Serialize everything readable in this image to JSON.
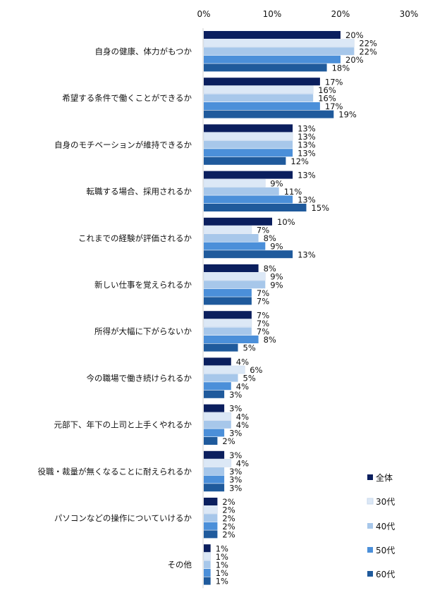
{
  "chart_data": {
    "type": "bar",
    "orientation": "horizontal",
    "xlim": [
      0,
      30
    ],
    "x_ticks": [
      "0%",
      "10%",
      "20%",
      "30%"
    ],
    "grid": false,
    "legend_position": "bottom-right",
    "categories": [
      "自身の健康、体力がもつか",
      "希望する条件で働くことができるか",
      "自身のモチベーションが維持できるか",
      "転職する場合、採用されるか",
      "これまでの経験が評価されるか",
      "新しい仕事を覚えられるか",
      "所得が大幅に下がらないか",
      "今の職場で働き続けられるか",
      "元部下、年下の上司と上手くやれるか",
      "役職・裁量が無くなることに耐えられるか",
      "パソコンなどの操作についていけるか",
      "その他"
    ],
    "series": [
      {
        "name": "全体",
        "color": "#0b1f5e",
        "values": [
          20,
          17,
          13,
          13,
          10,
          8,
          7,
          4,
          3,
          3,
          2,
          1
        ]
      },
      {
        "name": "30代",
        "color": "#dce8f6",
        "values": [
          22,
          16,
          13,
          9,
          7,
          9,
          7,
          6,
          4,
          4,
          2,
          1
        ]
      },
      {
        "name": "40代",
        "color": "#a7c7ea",
        "values": [
          22,
          16,
          13,
          11,
          8,
          9,
          7,
          5,
          4,
          3,
          2,
          1
        ]
      },
      {
        "name": "50代",
        "color": "#4b8fd9",
        "values": [
          20,
          17,
          13,
          13,
          9,
          7,
          8,
          4,
          3,
          3,
          2,
          1
        ]
      },
      {
        "name": "60代",
        "color": "#1f5a9c",
        "values": [
          18,
          19,
          12,
          15,
          13,
          7,
          5,
          3,
          2,
          3,
          2,
          1
        ]
      }
    ],
    "value_label_suffix": "%"
  }
}
